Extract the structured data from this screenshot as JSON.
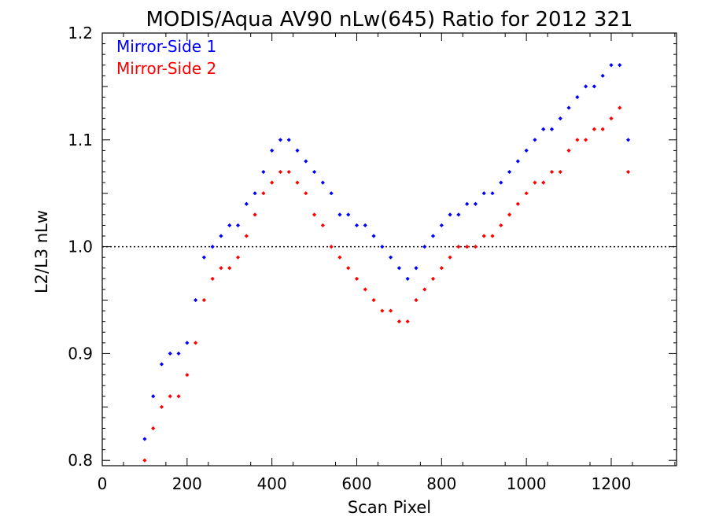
{
  "chart_data": {
    "type": "scatter",
    "title": "MODIS/Aqua AV90 nLw(645) Ratio for 2012 321",
    "xlabel": "Scan Pixel",
    "ylabel": "L2/L3 nLw",
    "xlim": [
      0,
      1354
    ],
    "ylim": [
      0.795,
      1.2
    ],
    "x_ticks": [
      0,
      200,
      400,
      600,
      800,
      1000,
      1200
    ],
    "y_ticks": [
      0.8,
      0.9,
      1.0,
      1.1,
      1.2
    ],
    "x_tick_labels": [
      "0",
      "200",
      "400",
      "600",
      "800",
      "1000",
      "1200"
    ],
    "y_tick_labels": [
      "0.8",
      "0.9",
      "1.0",
      "1.1",
      "1.2"
    ],
    "reference_line": {
      "y": 1.0,
      "style": "dotted"
    },
    "legend_position": "top-left",
    "series": [
      {
        "name": "Mirror-Side 1",
        "color": "#0000ff",
        "points": [
          [
            100,
            0.82
          ],
          [
            120,
            0.86
          ],
          [
            140,
            0.89
          ],
          [
            160,
            0.9
          ],
          [
            180,
            0.9
          ],
          [
            200,
            0.91
          ],
          [
            220,
            0.95
          ],
          [
            240,
            0.99
          ],
          [
            260,
            1.0
          ],
          [
            280,
            1.01
          ],
          [
            300,
            1.02
          ],
          [
            320,
            1.02
          ],
          [
            340,
            1.04
          ],
          [
            360,
            1.05
          ],
          [
            380,
            1.07
          ],
          [
            400,
            1.09
          ],
          [
            420,
            1.1
          ],
          [
            440,
            1.1
          ],
          [
            460,
            1.09
          ],
          [
            480,
            1.08
          ],
          [
            500,
            1.07
          ],
          [
            520,
            1.06
          ],
          [
            540,
            1.05
          ],
          [
            560,
            1.03
          ],
          [
            580,
            1.03
          ],
          [
            600,
            1.02
          ],
          [
            620,
            1.02
          ],
          [
            640,
            1.01
          ],
          [
            660,
            1.0
          ],
          [
            680,
            0.99
          ],
          [
            700,
            0.98
          ],
          [
            720,
            0.97
          ],
          [
            740,
            0.98
          ],
          [
            760,
            1.0
          ],
          [
            780,
            1.01
          ],
          [
            800,
            1.02
          ],
          [
            820,
            1.03
          ],
          [
            840,
            1.03
          ],
          [
            860,
            1.04
          ],
          [
            880,
            1.04
          ],
          [
            900,
            1.05
          ],
          [
            920,
            1.05
          ],
          [
            940,
            1.06
          ],
          [
            960,
            1.07
          ],
          [
            980,
            1.08
          ],
          [
            1000,
            1.09
          ],
          [
            1020,
            1.1
          ],
          [
            1040,
            1.11
          ],
          [
            1060,
            1.11
          ],
          [
            1080,
            1.12
          ],
          [
            1100,
            1.13
          ],
          [
            1120,
            1.14
          ],
          [
            1140,
            1.15
          ],
          [
            1160,
            1.15
          ],
          [
            1180,
            1.16
          ],
          [
            1200,
            1.17
          ],
          [
            1220,
            1.17
          ],
          [
            1240,
            1.1
          ]
        ]
      },
      {
        "name": "Mirror-Side 2",
        "color": "#ff0000",
        "points": [
          [
            100,
            0.8
          ],
          [
            120,
            0.83
          ],
          [
            140,
            0.85
          ],
          [
            160,
            0.86
          ],
          [
            180,
            0.86
          ],
          [
            200,
            0.88
          ],
          [
            220,
            0.91
          ],
          [
            240,
            0.95
          ],
          [
            260,
            0.97
          ],
          [
            280,
            0.98
          ],
          [
            300,
            0.98
          ],
          [
            320,
            0.99
          ],
          [
            340,
            1.01
          ],
          [
            360,
            1.03
          ],
          [
            380,
            1.05
          ],
          [
            400,
            1.06
          ],
          [
            420,
            1.07
          ],
          [
            440,
            1.07
          ],
          [
            460,
            1.06
          ],
          [
            480,
            1.05
          ],
          [
            500,
            1.03
          ],
          [
            520,
            1.02
          ],
          [
            540,
            1.0
          ],
          [
            560,
            0.99
          ],
          [
            580,
            0.98
          ],
          [
            600,
            0.97
          ],
          [
            620,
            0.96
          ],
          [
            640,
            0.95
          ],
          [
            660,
            0.94
          ],
          [
            680,
            0.94
          ],
          [
            700,
            0.93
          ],
          [
            720,
            0.93
          ],
          [
            740,
            0.95
          ],
          [
            760,
            0.96
          ],
          [
            780,
            0.97
          ],
          [
            800,
            0.98
          ],
          [
            820,
            0.99
          ],
          [
            840,
            1.0
          ],
          [
            860,
            1.0
          ],
          [
            880,
            1.0
          ],
          [
            900,
            1.01
          ],
          [
            920,
            1.01
          ],
          [
            940,
            1.02
          ],
          [
            960,
            1.03
          ],
          [
            980,
            1.04
          ],
          [
            1000,
            1.05
          ],
          [
            1020,
            1.06
          ],
          [
            1040,
            1.06
          ],
          [
            1060,
            1.07
          ],
          [
            1080,
            1.07
          ],
          [
            1100,
            1.09
          ],
          [
            1120,
            1.1
          ],
          [
            1140,
            1.1
          ],
          [
            1160,
            1.11
          ],
          [
            1180,
            1.11
          ],
          [
            1200,
            1.12
          ],
          [
            1220,
            1.13
          ],
          [
            1240,
            1.07
          ]
        ]
      }
    ]
  }
}
